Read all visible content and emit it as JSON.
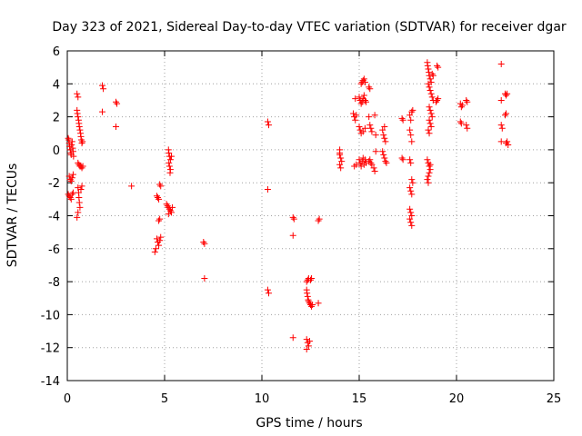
{
  "chart_data": {
    "type": "scatter",
    "title": "Day 323 of 2021, Sidereal Day-to-day VTEC variation (SDTVAR) for receiver dgar",
    "xlabel": "GPS time / hours",
    "ylabel": "SDTVAR / TECUs",
    "xlim": [
      0,
      25
    ],
    "ylim": [
      -14,
      6
    ],
    "xticks": [
      0,
      5,
      10,
      15,
      20,
      25
    ],
    "yticks": [
      -14,
      -12,
      -10,
      -8,
      -6,
      -4,
      -2,
      0,
      2,
      4,
      6
    ],
    "grid": true,
    "marker": "+",
    "colors": {
      "points": "#ff0000",
      "grid": "#a0a0a0",
      "axes": "#000000"
    },
    "series": [
      {
        "name": "SDTVAR",
        "points": [
          [
            0.05,
            0.7
          ],
          [
            0.08,
            0.6
          ],
          [
            0.1,
            0.4
          ],
          [
            0.12,
            0.2
          ],
          [
            0.15,
            0.0
          ],
          [
            0.18,
            -0.2
          ],
          [
            0.2,
            -0.3
          ],
          [
            0.22,
            0.3
          ],
          [
            0.25,
            0.5
          ],
          [
            0.28,
            0.1
          ],
          [
            0.3,
            -0.1
          ],
          [
            0.32,
            -0.4
          ],
          [
            0.1,
            -1.6
          ],
          [
            0.15,
            -1.8
          ],
          [
            0.2,
            -1.9
          ],
          [
            0.25,
            -1.7
          ],
          [
            0.3,
            -1.5
          ],
          [
            0.05,
            -2.7
          ],
          [
            0.1,
            -2.8
          ],
          [
            0.15,
            -2.9
          ],
          [
            0.2,
            -3.0
          ],
          [
            0.25,
            -2.7
          ],
          [
            0.3,
            -2.6
          ],
          [
            0.5,
            3.4
          ],
          [
            0.55,
            3.2
          ],
          [
            0.5,
            2.4
          ],
          [
            0.52,
            2.2
          ],
          [
            0.55,
            2.0
          ],
          [
            0.58,
            1.8
          ],
          [
            0.6,
            1.6
          ],
          [
            0.62,
            1.4
          ],
          [
            0.65,
            1.2
          ],
          [
            0.68,
            1.0
          ],
          [
            0.7,
            0.8
          ],
          [
            0.72,
            0.6
          ],
          [
            0.75,
            0.4
          ],
          [
            0.78,
            0.5
          ],
          [
            0.55,
            -0.8
          ],
          [
            0.6,
            -0.9
          ],
          [
            0.65,
            -1.0
          ],
          [
            0.7,
            -1.0
          ],
          [
            0.75,
            -1.1
          ],
          [
            0.8,
            -1.0
          ],
          [
            0.55,
            -2.3
          ],
          [
            0.58,
            -2.6
          ],
          [
            0.6,
            -2.9
          ],
          [
            0.62,
            -3.2
          ],
          [
            0.65,
            -3.5
          ],
          [
            0.55,
            -3.8
          ],
          [
            0.5,
            -4.1
          ],
          [
            0.7,
            -2.4
          ],
          [
            0.75,
            -2.2
          ],
          [
            1.8,
            3.9
          ],
          [
            1.85,
            3.7
          ],
          [
            1.8,
            2.3
          ],
          [
            2.5,
            2.9
          ],
          [
            2.55,
            2.8
          ],
          [
            2.5,
            1.4
          ],
          [
            3.3,
            -2.2
          ],
          [
            4.6,
            -2.8
          ],
          [
            4.65,
            -2.9
          ],
          [
            4.7,
            -3.0
          ],
          [
            4.75,
            -2.1
          ],
          [
            4.8,
            -2.2
          ],
          [
            4.7,
            -4.3
          ],
          [
            4.75,
            -4.2
          ],
          [
            4.6,
            -5.4
          ],
          [
            4.65,
            -5.6
          ],
          [
            4.7,
            -5.8
          ],
          [
            4.55,
            -6.0
          ],
          [
            4.5,
            -6.2
          ],
          [
            4.75,
            -5.5
          ],
          [
            4.8,
            -5.3
          ],
          [
            5.2,
            0.0
          ],
          [
            5.22,
            -0.2
          ],
          [
            5.25,
            -0.4
          ],
          [
            5.3,
            -0.6
          ],
          [
            5.22,
            -0.8
          ],
          [
            5.25,
            -1.0
          ],
          [
            5.3,
            -1.2
          ],
          [
            5.35,
            -0.4
          ],
          [
            5.28,
            -1.4
          ],
          [
            5.1,
            -3.3
          ],
          [
            5.15,
            -3.4
          ],
          [
            5.2,
            -3.5
          ],
          [
            5.25,
            -3.6
          ],
          [
            5.3,
            -3.7
          ],
          [
            5.35,
            -3.8
          ],
          [
            5.4,
            -3.5
          ],
          [
            5.2,
            -3.9
          ],
          [
            7.0,
            -5.6
          ],
          [
            7.05,
            -5.7
          ],
          [
            7.05,
            -7.8
          ],
          [
            10.3,
            1.7
          ],
          [
            10.35,
            1.5
          ],
          [
            10.3,
            -2.4
          ],
          [
            10.3,
            -8.5
          ],
          [
            10.35,
            -8.7
          ],
          [
            11.6,
            -4.1
          ],
          [
            11.65,
            -4.2
          ],
          [
            11.6,
            -5.2
          ],
          [
            11.6,
            -11.4
          ],
          [
            12.3,
            -11.5
          ],
          [
            12.35,
            -11.7
          ],
          [
            12.4,
            -11.9
          ],
          [
            12.3,
            -12.1
          ],
          [
            12.45,
            -11.6
          ],
          [
            12.3,
            -8.5
          ],
          [
            12.32,
            -8.7
          ],
          [
            12.35,
            -8.9
          ],
          [
            12.38,
            -9.1
          ],
          [
            12.4,
            -9.2
          ],
          [
            12.45,
            -9.3
          ],
          [
            12.5,
            -9.4
          ],
          [
            12.55,
            -9.5
          ],
          [
            12.6,
            -9.4
          ],
          [
            12.3,
            -8.0
          ],
          [
            12.35,
            -7.9
          ],
          [
            12.4,
            -7.8
          ],
          [
            12.5,
            -7.9
          ],
          [
            12.55,
            -7.8
          ],
          [
            12.9,
            -4.3
          ],
          [
            12.95,
            -4.2
          ],
          [
            12.9,
            -9.3
          ],
          [
            14.0,
            0.0
          ],
          [
            14.0,
            -0.3
          ],
          [
            14.05,
            -0.5
          ],
          [
            14.1,
            -0.7
          ],
          [
            14.0,
            -0.9
          ],
          [
            14.05,
            -1.1
          ],
          [
            14.0,
            -0.2
          ],
          [
            14.7,
            2.2
          ],
          [
            14.75,
            2.0
          ],
          [
            14.8,
            1.8
          ],
          [
            14.85,
            2.1
          ],
          [
            14.8,
            3.1
          ],
          [
            14.75,
            -1.0
          ],
          [
            14.85,
            -0.9
          ],
          [
            15.0,
            3.2
          ],
          [
            15.05,
            3.0
          ],
          [
            15.1,
            2.8
          ],
          [
            15.15,
            2.9
          ],
          [
            15.2,
            3.1
          ],
          [
            15.25,
            3.3
          ],
          [
            15.3,
            3.0
          ],
          [
            15.35,
            2.9
          ],
          [
            15.1,
            4.0
          ],
          [
            15.15,
            4.1
          ],
          [
            15.2,
            4.2
          ],
          [
            15.25,
            4.3
          ],
          [
            15.3,
            4.1
          ],
          [
            15.0,
            1.4
          ],
          [
            15.05,
            1.2
          ],
          [
            15.1,
            1.0
          ],
          [
            15.2,
            1.1
          ],
          [
            15.3,
            1.3
          ],
          [
            15.0,
            -0.6
          ],
          [
            15.05,
            -0.8
          ],
          [
            15.1,
            -1.0
          ],
          [
            15.15,
            -0.7
          ],
          [
            15.2,
            -0.5
          ],
          [
            15.25,
            -0.9
          ],
          [
            15.3,
            -0.6
          ],
          [
            15.35,
            -0.8
          ],
          [
            15.5,
            3.8
          ],
          [
            15.55,
            3.7
          ],
          [
            15.5,
            2.0
          ],
          [
            15.55,
            1.5
          ],
          [
            15.6,
            1.3
          ],
          [
            15.65,
            1.1
          ],
          [
            15.5,
            -0.7
          ],
          [
            15.55,
            -0.6
          ],
          [
            15.6,
            -0.8
          ],
          [
            15.65,
            -0.9
          ],
          [
            15.8,
            2.1
          ],
          [
            15.85,
            0.9
          ],
          [
            15.75,
            -1.1
          ],
          [
            15.8,
            -1.3
          ],
          [
            15.85,
            -0.1
          ],
          [
            16.2,
            1.2
          ],
          [
            16.25,
            0.9
          ],
          [
            16.3,
            0.7
          ],
          [
            16.35,
            0.5
          ],
          [
            16.2,
            -0.1
          ],
          [
            16.25,
            -0.3
          ],
          [
            16.3,
            -0.5
          ],
          [
            16.35,
            -0.7
          ],
          [
            16.4,
            -0.8
          ],
          [
            16.3,
            1.4
          ],
          [
            17.2,
            1.9
          ],
          [
            17.25,
            1.8
          ],
          [
            17.2,
            -0.5
          ],
          [
            17.25,
            -0.6
          ],
          [
            17.6,
            2.1
          ],
          [
            17.65,
            1.8
          ],
          [
            17.7,
            2.3
          ],
          [
            17.75,
            2.4
          ],
          [
            17.6,
            1.2
          ],
          [
            17.65,
            0.9
          ],
          [
            17.7,
            0.5
          ],
          [
            17.6,
            -0.6
          ],
          [
            17.65,
            -0.8
          ],
          [
            17.7,
            -1.8
          ],
          [
            17.75,
            -2.0
          ],
          [
            17.6,
            -2.3
          ],
          [
            17.65,
            -2.5
          ],
          [
            17.7,
            -2.7
          ],
          [
            17.6,
            -3.6
          ],
          [
            17.65,
            -3.8
          ],
          [
            17.7,
            -4.0
          ],
          [
            17.6,
            -4.2
          ],
          [
            17.65,
            -4.4
          ],
          [
            17.7,
            -4.6
          ],
          [
            18.5,
            5.3
          ],
          [
            18.52,
            5.1
          ],
          [
            18.55,
            4.9
          ],
          [
            18.58,
            4.7
          ],
          [
            18.6,
            4.5
          ],
          [
            18.65,
            4.3
          ],
          [
            18.7,
            4.1
          ],
          [
            18.75,
            4.6
          ],
          [
            18.8,
            4.5
          ],
          [
            18.55,
            4.0
          ],
          [
            18.6,
            3.8
          ],
          [
            18.65,
            3.6
          ],
          [
            18.7,
            3.4
          ],
          [
            18.75,
            3.2
          ],
          [
            18.8,
            3.0
          ],
          [
            18.6,
            2.6
          ],
          [
            18.65,
            2.4
          ],
          [
            18.7,
            2.2
          ],
          [
            18.75,
            2.0
          ],
          [
            18.6,
            1.8
          ],
          [
            18.65,
            1.6
          ],
          [
            18.7,
            1.4
          ],
          [
            18.55,
            1.2
          ],
          [
            18.6,
            1.0
          ],
          [
            18.5,
            -0.6
          ],
          [
            18.55,
            -0.8
          ],
          [
            18.6,
            -1.0
          ],
          [
            18.65,
            -1.2
          ],
          [
            18.6,
            -1.4
          ],
          [
            18.55,
            -1.6
          ],
          [
            18.5,
            -1.8
          ],
          [
            18.55,
            -2.0
          ],
          [
            18.65,
            -0.9
          ],
          [
            19.0,
            5.1
          ],
          [
            19.05,
            5.0
          ],
          [
            19.0,
            3.0
          ],
          [
            18.95,
            2.9
          ],
          [
            19.05,
            3.1
          ],
          [
            20.2,
            2.8
          ],
          [
            20.25,
            2.6
          ],
          [
            20.3,
            2.7
          ],
          [
            20.2,
            1.7
          ],
          [
            20.25,
            1.6
          ],
          [
            20.5,
            3.0
          ],
          [
            20.55,
            2.9
          ],
          [
            20.5,
            1.5
          ],
          [
            20.55,
            1.3
          ],
          [
            22.3,
            5.2
          ],
          [
            22.3,
            3.0
          ],
          [
            22.5,
            3.4
          ],
          [
            22.55,
            3.3
          ],
          [
            22.6,
            3.4
          ],
          [
            22.5,
            2.1
          ],
          [
            22.55,
            2.2
          ],
          [
            22.3,
            1.5
          ],
          [
            22.35,
            1.3
          ],
          [
            22.3,
            0.5
          ],
          [
            22.55,
            0.4
          ],
          [
            22.6,
            0.5
          ],
          [
            22.65,
            0.3
          ]
        ]
      }
    ]
  }
}
